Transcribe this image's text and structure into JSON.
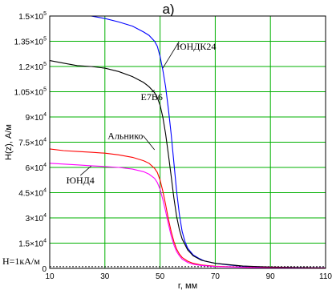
{
  "chart_data": {
    "type": "line",
    "panel_label": "a)",
    "xlabel": "r, мм",
    "ylabel": "H(z), А/м",
    "xlim": [
      10,
      110
    ],
    "ylim": [
      0,
      150000
    ],
    "x_ticks": [
      "10",
      "30",
      "50",
      "70",
      "90",
      "110"
    ],
    "y_ticks": [
      {
        "value": 150000,
        "mant": "1.5×10",
        "exp": "5"
      },
      {
        "value": 135000,
        "mant": "1.35×10",
        "exp": "5"
      },
      {
        "value": 120000,
        "mant": "1.2×10",
        "exp": "5"
      },
      {
        "value": 105000,
        "mant": "1.05×10",
        "exp": "5"
      },
      {
        "value": 90000,
        "mant": "9×10",
        "exp": "4"
      },
      {
        "value": 75000,
        "mant": "7.5×10",
        "exp": "4"
      },
      {
        "value": 60000,
        "mant": "6×10",
        "exp": "4"
      },
      {
        "value": 45000,
        "mant": "4.5×10",
        "exp": "4"
      },
      {
        "value": 30000,
        "mant": "3×10",
        "exp": "4"
      },
      {
        "value": 15000,
        "mant": "1.5×10",
        "exp": "4"
      },
      {
        "value": 0,
        "mant": "0",
        "exp": ""
      }
    ],
    "grid": true,
    "reference_line": {
      "label": "H=1кА/м",
      "value": 1000,
      "color": "#000000"
    },
    "series": [
      {
        "name": "ЮНДК24",
        "color": "#0000ff",
        "x": [
          25,
          30,
          35,
          40,
          44,
          46,
          48,
          49,
          50,
          51,
          52,
          53,
          54,
          55,
          56,
          57,
          58,
          59,
          60,
          62,
          64,
          66,
          70,
          75,
          80,
          90,
          100,
          110
        ],
        "y": [
          150000,
          148500,
          146500,
          144000,
          140500,
          138500,
          135000,
          132000,
          126000,
          118000,
          108000,
          95000,
          80000,
          63000,
          46000,
          32000,
          22000,
          16000,
          12000,
          8000,
          6000,
          4500,
          3000,
          2000,
          1300,
          700,
          400,
          300
        ]
      },
      {
        "name": "E7B6",
        "color": "#000000",
        "x": [
          10,
          15,
          20,
          25,
          30,
          35,
          40,
          44,
          46,
          48,
          49,
          50,
          51,
          52,
          53,
          54,
          55,
          56,
          57,
          58,
          60,
          62,
          65,
          70,
          80,
          90,
          100,
          110
        ],
        "y": [
          123500,
          122000,
          120500,
          120000,
          119000,
          117000,
          114000,
          110500,
          108000,
          104500,
          101500,
          97000,
          90000,
          80000,
          68000,
          55000,
          42000,
          31000,
          23000,
          17500,
          11000,
          7500,
          4800,
          3000,
          1400,
          800,
          500,
          300
        ]
      },
      {
        "name": "Альнико",
        "color": "#ff0000",
        "x": [
          10,
          15,
          20,
          25,
          30,
          35,
          40,
          44,
          46,
          48,
          49,
          50,
          51,
          52,
          53,
          54,
          55,
          56,
          57,
          58,
          60,
          62,
          65,
          70,
          80,
          90,
          100,
          110
        ],
        "y": [
          71000,
          70000,
          69500,
          69000,
          68500,
          67500,
          66000,
          64000,
          62500,
          59500,
          57000,
          52500,
          46000,
          38000,
          29500,
          22000,
          16000,
          11500,
          8500,
          6500,
          4300,
          3000,
          2000,
          1300,
          700,
          400,
          250,
          150
        ]
      },
      {
        "name": "ЮНД4",
        "color": "#ff00ff",
        "x": [
          10,
          15,
          20,
          25,
          30,
          35,
          40,
          44,
          46,
          48,
          49,
          50,
          51,
          52,
          53,
          54,
          55,
          56,
          57,
          58,
          60,
          62,
          65,
          70,
          80,
          90,
          100,
          110
        ],
        "y": [
          62500,
          62000,
          61500,
          61000,
          60500,
          60000,
          59000,
          57500,
          56000,
          53500,
          51000,
          47000,
          41000,
          34000,
          26500,
          19500,
          14000,
          10000,
          7500,
          5500,
          3500,
          2500,
          1700,
          1100,
          600,
          300,
          200,
          100
        ]
      }
    ],
    "annotations": [
      {
        "text": "ЮНДК24",
        "x": 56,
        "y": 130000,
        "points_to": [
          51,
          119000
        ]
      },
      {
        "text": "E7B6",
        "x": 43,
        "y": 100000,
        "points_to": [
          48,
          106000
        ]
      },
      {
        "text": "Альнико",
        "x": 31,
        "y": 77000,
        "points_to": [
          48,
          70500
        ]
      },
      {
        "text": "ЮНД4",
        "x": 16,
        "y": 50500,
        "points_to": [
          25,
          60800
        ]
      }
    ]
  }
}
